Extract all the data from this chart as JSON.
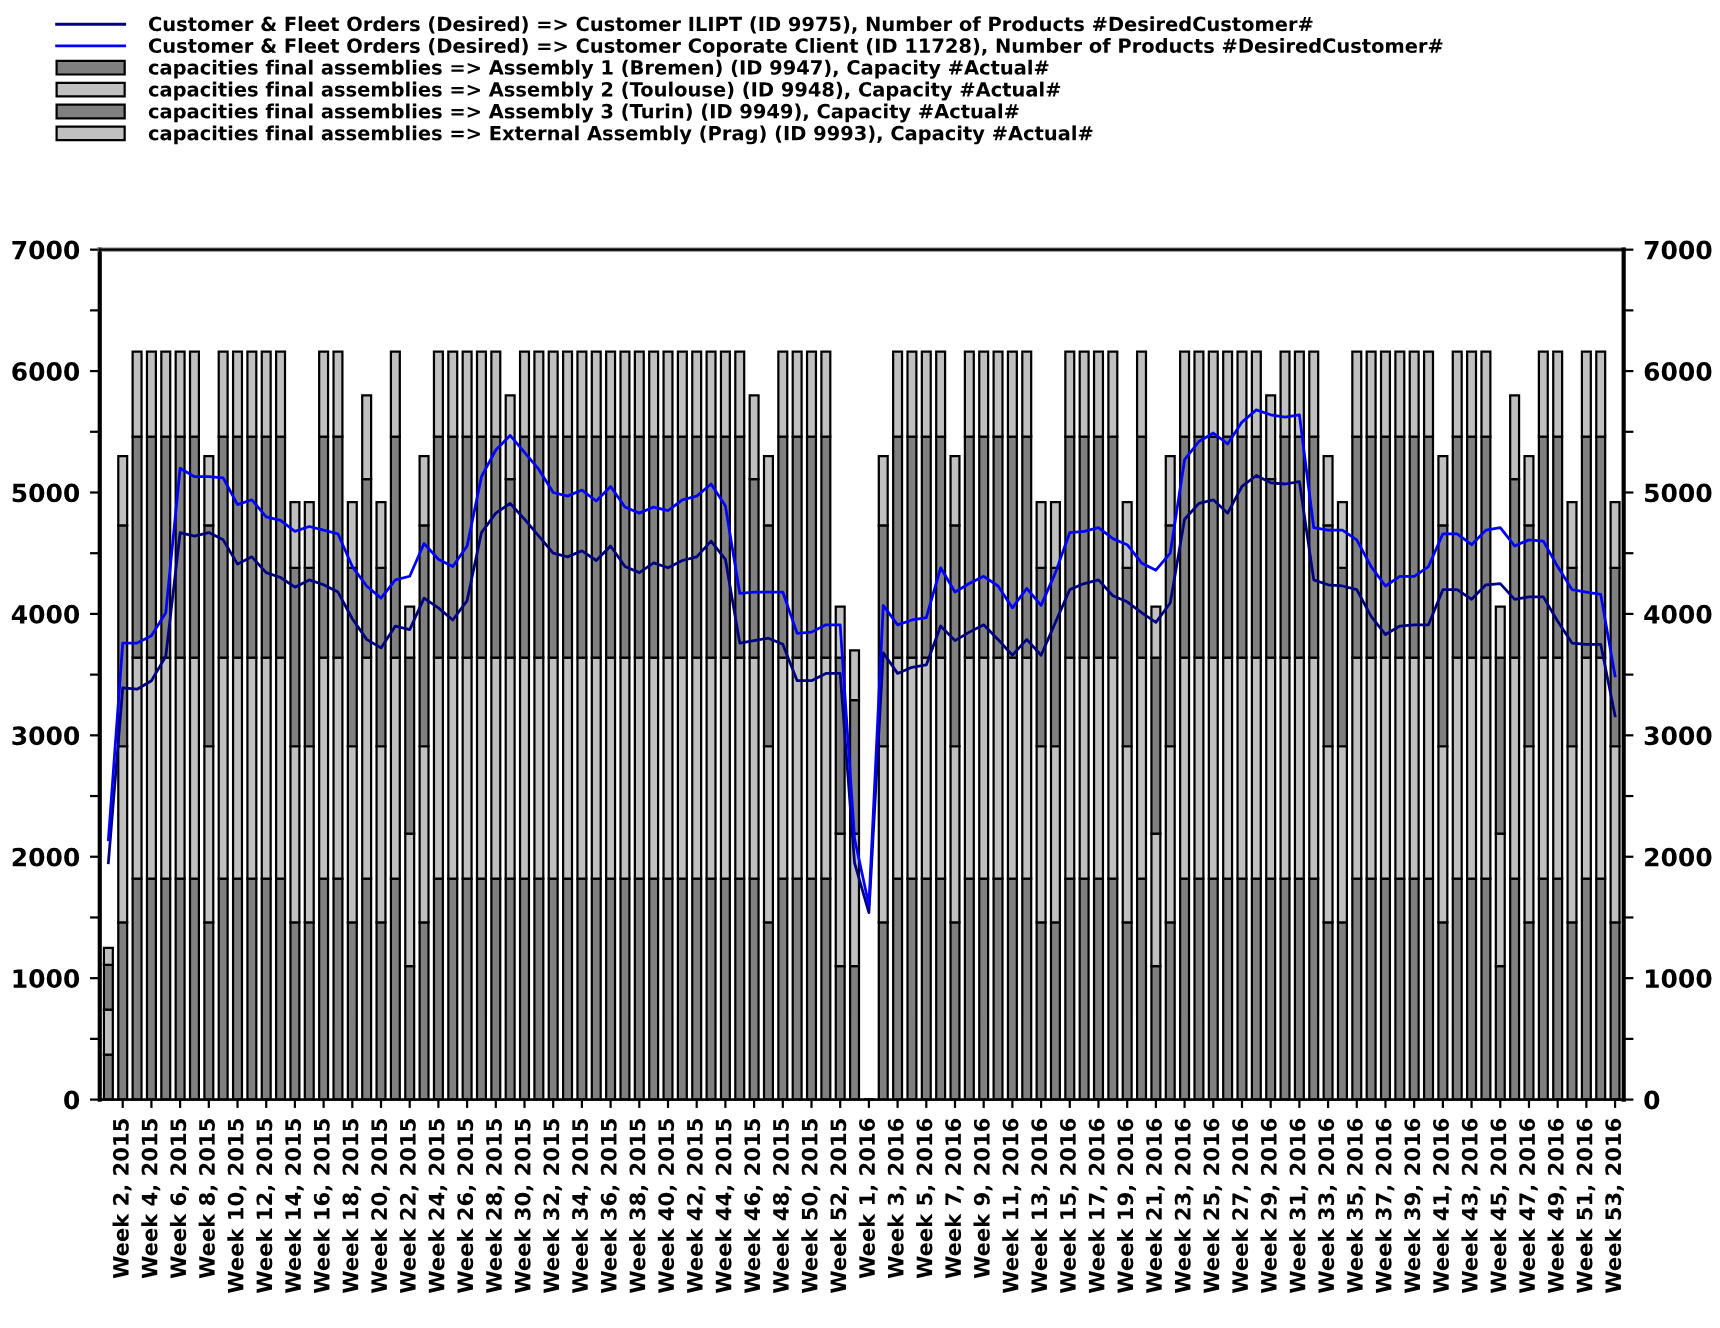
{
  "chart_data": {
    "type": "bar",
    "stacked": true,
    "categories": [
      null,
      "Week 2, 2015",
      null,
      "Week 4, 2015",
      null,
      "Week 6, 2015",
      null,
      "Week 8, 2015",
      null,
      "Week 10, 2015",
      null,
      "Week 12, 2015",
      null,
      "Week 14, 2015",
      null,
      "Week 16, 2015",
      null,
      "Week 18, 2015",
      null,
      "Week 20, 2015",
      null,
      "Week 22, 2015",
      null,
      "Week 24, 2015",
      null,
      "Week 26, 2015",
      null,
      "Week 28, 2015",
      null,
      "Week 30, 2015",
      null,
      "Week 32, 2015",
      null,
      "Week 34, 2015",
      null,
      "Week 36, 2015",
      null,
      "Week 38, 2015",
      null,
      "Week 40, 2015",
      null,
      "Week 42, 2015",
      null,
      "Week 44, 2015",
      null,
      "Week 46, 2015",
      null,
      "Week 48, 2015",
      null,
      "Week 50, 2015",
      null,
      "Week 52, 2015",
      null,
      "Week 1, 2016",
      null,
      "Week 3, 2016",
      null,
      "Week 5, 2016",
      null,
      "Week 7, 2016",
      null,
      "Week 9, 2016",
      null,
      "Week 11, 2016",
      null,
      "Week 13, 2016",
      null,
      "Week 15, 2016",
      null,
      "Week 17, 2016",
      null,
      "Week 19, 2016",
      null,
      "Week 21, 2016",
      null,
      "Week 23, 2016",
      null,
      "Week 25, 2016",
      null,
      "Week 27, 2016",
      null,
      "Week 29, 2016",
      null,
      "Week 31, 2016",
      null,
      "Week 33, 2016",
      null,
      "Week 35, 2016",
      null,
      "Week 37, 2016",
      null,
      "Week 39, 2016",
      null,
      "Week 41, 2016",
      null,
      "Week 43, 2016",
      null,
      "Week 45, 2016",
      null,
      "Week 47, 2016",
      null,
      "Week 49, 2016",
      null,
      "Week 51, 2016",
      null,
      "Week 53, 2016"
    ],
    "series": [
      {
        "name": "Customer & Fleet Orders (Desired) => Customer ILIPT (ID 9975), Number of Products #DesiredCustomer#",
        "type": "line",
        "color": "#000080",
        "values": [
          1950,
          3390,
          3380,
          3450,
          3650,
          4670,
          4640,
          4670,
          4610,
          4410,
          4470,
          4340,
          4300,
          4220,
          4280,
          4240,
          4180,
          3960,
          3790,
          3720,
          3900,
          3870,
          4130,
          4050,
          3950,
          4110,
          4670,
          4830,
          4910,
          4780,
          4640,
          4500,
          4470,
          4520,
          4440,
          4560,
          4390,
          4340,
          4420,
          4380,
          4440,
          4470,
          4600,
          4450,
          3760,
          3780,
          3800,
          3750,
          3450,
          3450,
          3510,
          3510,
          1950,
          1540,
          3680,
          3510,
          3560,
          3580,
          3900,
          3780,
          3850,
          3910,
          3790,
          3660,
          3790,
          3660,
          3930,
          4200,
          4250,
          4280,
          4150,
          4100,
          4010,
          3930,
          4090,
          4780,
          4910,
          4940,
          4830,
          5050,
          5140,
          5080,
          5070,
          5090,
          4280,
          4240,
          4230,
          4200,
          3980,
          3830,
          3900,
          3910,
          3910,
          4200,
          4200,
          4120,
          4240,
          4250,
          4120,
          4140,
          4140,
          3940,
          3760,
          3750,
          3750,
          3160
        ]
      },
      {
        "name": "Customer & Fleet Orders (Desired) => Customer Coporate Client (ID 11728), Number of Products #DesiredCustomer#",
        "type": "line",
        "color": "#0000ff",
        "values": [
          2140,
          3760,
          3760,
          3820,
          4010,
          5200,
          5130,
          5130,
          5120,
          4900,
          4940,
          4800,
          4770,
          4680,
          4720,
          4690,
          4660,
          4390,
          4230,
          4130,
          4280,
          4310,
          4580,
          4450,
          4390,
          4560,
          5130,
          5350,
          5470,
          5330,
          5190,
          5000,
          4970,
          5020,
          4930,
          5050,
          4880,
          4830,
          4880,
          4850,
          4940,
          4970,
          5070,
          4890,
          4170,
          4180,
          4180,
          4180,
          3840,
          3850,
          3910,
          3910,
          2150,
          1600,
          4070,
          3910,
          3950,
          3970,
          4380,
          4180,
          4250,
          4310,
          4230,
          4050,
          4210,
          4070,
          4340,
          4670,
          4680,
          4710,
          4620,
          4570,
          4420,
          4360,
          4500,
          5270,
          5420,
          5490,
          5400,
          5580,
          5680,
          5640,
          5620,
          5640,
          4710,
          4690,
          4690,
          4610,
          4390,
          4230,
          4310,
          4310,
          4390,
          4660,
          4660,
          4570,
          4690,
          4710,
          4560,
          4610,
          4600,
          4390,
          4200,
          4180,
          4160,
          3490
        ]
      },
      {
        "name": "capacities final assemblies => Assembly 1 (Bremen) (ID 9947), Capacity #Actual#",
        "color": "#808080",
        "values": [
          370,
          1460,
          1820,
          1820,
          1820,
          1820,
          1820,
          1460,
          1820,
          1820,
          1820,
          1820,
          1820,
          1460,
          1460,
          1820,
          1820,
          1460,
          1820,
          1460,
          1820,
          1100,
          1460,
          1820,
          1820,
          1820,
          1820,
          1820,
          1820,
          1820,
          1820,
          1820,
          1820,
          1820,
          1820,
          1820,
          1820,
          1820,
          1820,
          1820,
          1820,
          1820,
          1820,
          1820,
          1820,
          1820,
          1460,
          1820,
          1820,
          1820,
          1820,
          1100,
          1100,
          0,
          1460,
          1820,
          1820,
          1820,
          1820,
          1460,
          1820,
          1820,
          1820,
          1820,
          1820,
          1460,
          1460,
          1820,
          1820,
          1820,
          1820,
          1460,
          1820,
          1100,
          1460,
          1820,
          1820,
          1820,
          1820,
          1820,
          1820,
          1820,
          1820,
          1820,
          1820,
          1460,
          1460,
          1820,
          1820,
          1820,
          1820,
          1820,
          1820,
          1460,
          1820,
          1820,
          1820,
          1100,
          1820,
          1460,
          1820,
          1820,
          1460,
          1820,
          1820,
          1460
        ]
      },
      {
        "name": "capacities final assemblies => Assembly 2 (Toulouse) (ID 9948), Capacity #Actual#",
        "color": "#c0c0c0",
        "values": [
          370,
          1450,
          1820,
          1820,
          1820,
          1820,
          1820,
          1450,
          1820,
          1820,
          1820,
          1820,
          1820,
          1450,
          1450,
          1820,
          1820,
          1450,
          1820,
          1450,
          1820,
          1090,
          1450,
          1820,
          1820,
          1820,
          1820,
          1820,
          1820,
          1820,
          1820,
          1820,
          1820,
          1820,
          1820,
          1820,
          1820,
          1820,
          1820,
          1820,
          1820,
          1820,
          1820,
          1820,
          1820,
          1820,
          1450,
          1820,
          1820,
          1820,
          1820,
          1090,
          1090,
          0,
          1450,
          1820,
          1820,
          1820,
          1820,
          1450,
          1820,
          1820,
          1820,
          1820,
          1820,
          1450,
          1450,
          1820,
          1820,
          1820,
          1820,
          1450,
          1820,
          1090,
          1450,
          1820,
          1820,
          1820,
          1820,
          1820,
          1820,
          1820,
          1820,
          1820,
          1820,
          1450,
          1450,
          1820,
          1820,
          1820,
          1820,
          1820,
          1820,
          1450,
          1820,
          1820,
          1820,
          1090,
          1820,
          1450,
          1820,
          1820,
          1450,
          1820,
          1820,
          1450
        ]
      },
      {
        "name": "capacities final assemblies => Assembly 3 (Turin) (ID 9949), Capacity #Actual#",
        "color": "#808080",
        "values": [
          370,
          1820,
          1820,
          1820,
          1820,
          1820,
          1820,
          1820,
          1820,
          1820,
          1820,
          1820,
          1820,
          1470,
          1470,
          1820,
          1820,
          1470,
          1470,
          1470,
          1820,
          1450,
          1820,
          1820,
          1820,
          1820,
          1820,
          1820,
          1470,
          1820,
          1820,
          1820,
          1820,
          1820,
          1820,
          1820,
          1820,
          1820,
          1820,
          1820,
          1820,
          1820,
          1820,
          1820,
          1820,
          1470,
          1820,
          1820,
          1820,
          1820,
          1820,
          1450,
          1100,
          0,
          1820,
          1820,
          1820,
          1820,
          1820,
          1820,
          1820,
          1820,
          1820,
          1820,
          1820,
          1470,
          1470,
          1820,
          1820,
          1820,
          1820,
          1470,
          1820,
          1450,
          1820,
          1820,
          1820,
          1820,
          1820,
          1820,
          1820,
          1470,
          1820,
          1820,
          1820,
          1820,
          1470,
          1820,
          1820,
          1820,
          1820,
          1820,
          1820,
          1820,
          1820,
          1820,
          1820,
          1450,
          1470,
          1820,
          1820,
          1820,
          1470,
          1820,
          1820,
          1470
        ]
      },
      {
        "name": "capacities final assemblies => External Assembly (Prag) (ID 9993), Capacity #Actual#",
        "color": "#c0c0c0",
        "values": [
          140,
          570,
          700,
          700,
          700,
          700,
          700,
          570,
          700,
          700,
          700,
          700,
          700,
          540,
          540,
          700,
          700,
          540,
          690,
          540,
          700,
          420,
          570,
          700,
          700,
          700,
          700,
          700,
          690,
          700,
          700,
          700,
          700,
          700,
          700,
          700,
          700,
          700,
          700,
          700,
          700,
          700,
          700,
          700,
          700,
          690,
          570,
          700,
          700,
          700,
          700,
          420,
          410,
          0,
          570,
          700,
          700,
          700,
          700,
          570,
          700,
          700,
          700,
          700,
          700,
          540,
          540,
          700,
          700,
          700,
          700,
          540,
          700,
          420,
          570,
          700,
          700,
          700,
          700,
          700,
          700,
          690,
          700,
          700,
          700,
          570,
          540,
          700,
          700,
          700,
          700,
          700,
          700,
          570,
          700,
          700,
          700,
          420,
          690,
          570,
          700,
          700,
          540,
          700,
          700,
          540
        ]
      }
    ],
    "ylim": [
      0,
      7000
    ],
    "yticks": [
      0,
      {
        "value": 500,
        "label": null
      },
      1000,
      {
        "value": 1500,
        "label": null
      },
      2000,
      {
        "value": 2500,
        "label": null
      },
      3000,
      {
        "value": 3500,
        "label": null
      },
      4000,
      {
        "value": 4500,
        "label": null
      },
      5000,
      {
        "value": 5500,
        "label": null
      },
      6000,
      {
        "value": 6500,
        "label": null
      },
      7000
    ],
    "y2lim": [
      0,
      7000
    ],
    "y2ticks": [
      0,
      {
        "value": 500,
        "label": null
      },
      1000,
      {
        "value": 1500,
        "label": null
      },
      2000,
      {
        "value": 2500,
        "label": null
      },
      3000,
      {
        "value": 3500,
        "label": null
      },
      4000,
      {
        "value": 4500,
        "label": null
      },
      5000,
      {
        "value": 5500,
        "label": null
      },
      6000,
      {
        "value": 6500,
        "label": null
      },
      7000
    ],
    "grid": false,
    "legend": "top"
  }
}
